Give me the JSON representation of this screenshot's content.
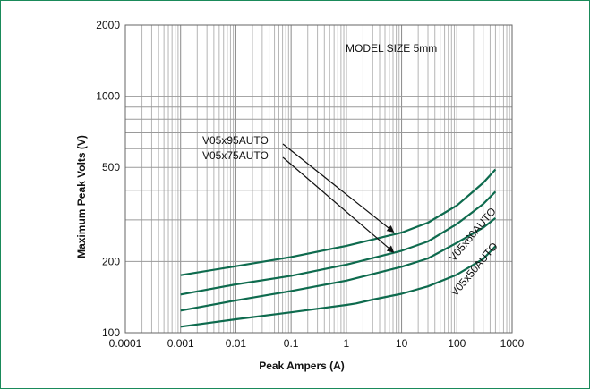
{
  "chart_data": {
    "type": "line",
    "title": "",
    "xlabel": "Peak Ampers (A)",
    "ylabel": "Maximum Peak Volts (V)",
    "x_scale": "log",
    "y_scale": "log",
    "xlim": [
      0.0001,
      1000
    ],
    "ylim": [
      100,
      2000
    ],
    "x_ticks": [
      {
        "value": 0.0001,
        "label": "0.0001"
      },
      {
        "value": 0.001,
        "label": "0.001"
      },
      {
        "value": 0.01,
        "label": "0.01"
      },
      {
        "value": 0.1,
        "label": "0.1"
      },
      {
        "value": 1,
        "label": "1"
      },
      {
        "value": 10,
        "label": "10"
      },
      {
        "value": 100,
        "label": "100"
      },
      {
        "value": 1000,
        "label": "1000"
      }
    ],
    "y_ticks": [
      {
        "value": 100,
        "label": "100"
      },
      {
        "value": 200,
        "label": "200"
      },
      {
        "value": 500,
        "label": "500"
      },
      {
        "value": 1000,
        "label": "1000"
      },
      {
        "value": 2000,
        "label": "2000"
      }
    ],
    "grid": true,
    "line_color": "#0e6b4e",
    "annotations": {
      "model_size": "MODEL SIZE 5mm",
      "label_95": "V05x95AUTO",
      "label_75": "V05x75AUTO",
      "label_60": "V05x60AUTO",
      "label_50": "V05x50AUTO"
    },
    "series": [
      {
        "name": "V05x95AUTO",
        "points": [
          [
            0.001,
            175
          ],
          [
            0.01,
            191
          ],
          [
            0.1,
            209
          ],
          [
            1,
            233
          ],
          [
            10,
            265
          ],
          [
            30,
            292
          ],
          [
            100,
            345
          ],
          [
            300,
            430
          ],
          [
            500,
            490
          ]
        ]
      },
      {
        "name": "V05x75AUTO",
        "points": [
          [
            0.001,
            145
          ],
          [
            0.01,
            160
          ],
          [
            0.1,
            174
          ],
          [
            1,
            194
          ],
          [
            10,
            222
          ],
          [
            30,
            243
          ],
          [
            100,
            288
          ],
          [
            300,
            350
          ],
          [
            500,
            395
          ]
        ]
      },
      {
        "name": "V05x60AUTO",
        "points": [
          [
            0.001,
            124
          ],
          [
            0.01,
            137
          ],
          [
            0.1,
            150
          ],
          [
            1,
            166
          ],
          [
            10,
            190
          ],
          [
            30,
            206
          ],
          [
            100,
            240
          ],
          [
            300,
            278
          ],
          [
            500,
            305
          ]
        ]
      },
      {
        "name": "V05x50AUTO",
        "points": [
          [
            0.001,
            106
          ],
          [
            0.01,
            114
          ],
          [
            0.1,
            122
          ],
          [
            1,
            131
          ],
          [
            1.5,
            133
          ],
          [
            3,
            138
          ],
          [
            10,
            146
          ],
          [
            30,
            157
          ],
          [
            100,
            176
          ],
          [
            300,
            205
          ],
          [
            500,
            232
          ]
        ]
      }
    ]
  }
}
